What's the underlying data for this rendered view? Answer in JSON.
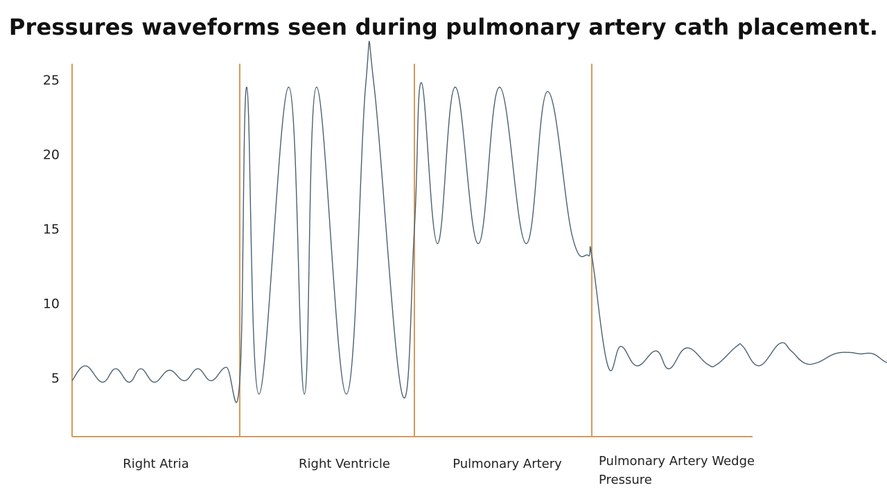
{
  "chart_data": {
    "type": "line",
    "title": "Pressures waveforms seen during pulmonary artery cath placement.",
    "xlabel": "",
    "ylabel": "",
    "ylim": [
      0,
      25
    ],
    "yticks": [
      "5",
      "10",
      "15",
      "20",
      "25"
    ],
    "ytick_values": [
      5,
      10,
      15,
      20,
      25
    ],
    "grid": false,
    "sections": [
      {
        "name": "Right Atria",
        "lines": [
          "Right Atria"
        ]
      },
      {
        "name": "Right Ventricle",
        "lines": [
          "Right Ventricle"
        ]
      },
      {
        "name": "Pulmonary Artery",
        "lines": [
          "Pulmonary Artery"
        ]
      },
      {
        "name": "Pulmonary Artery Wedge Pressure",
        "lines": [
          "Pulmonary Artery Wedge",
          "Pressure"
        ]
      }
    ],
    "series": [
      {
        "x": [
          0.0,
          0.08,
          0.18,
          0.26,
          0.34,
          0.41,
          0.49,
          0.58,
          0.67,
          0.75,
          0.83,
          0.92,
          1.0,
          1.04,
          1.11,
          1.28,
          1.37,
          1.44,
          1.61,
          1.72,
          1.77,
          1.93,
          2.0,
          2.04,
          2.13,
          2.23,
          2.36,
          2.48,
          2.63,
          2.75,
          2.89,
          2.98,
          3.0,
          3.1,
          3.18,
          3.28,
          3.4,
          3.48,
          3.59,
          3.72,
          3.78,
          3.9,
          3.94,
          4.04,
          4.17,
          4.24,
          4.32,
          4.4,
          4.51,
          4.6,
          4.67,
          4.75,
          4.84,
          4.93
        ],
        "y": [
          4.8,
          5.8,
          4.7,
          5.6,
          4.7,
          5.6,
          4.7,
          5.5,
          4.8,
          5.6,
          4.8,
          5.7,
          4.8,
          24.5,
          3.9,
          24.5,
          3.9,
          24.5,
          3.9,
          24.5,
          24.5,
          3.9,
          15.0,
          24.8,
          14.0,
          24.5,
          14.0,
          24.5,
          14.0,
          24.2,
          14.5,
          13.2,
          13.2,
          5.8,
          7.1,
          5.8,
          6.8,
          5.6,
          7.0,
          5.9,
          5.9,
          7.1,
          7.1,
          5.8,
          7.3,
          6.8,
          6.0,
          6.0,
          6.6,
          6.7,
          6.6,
          6.6,
          6.0,
          6.0
        ]
      }
    ],
    "colors": {
      "axis": "#d49a5a",
      "wave": "#4a6070",
      "text": "#222222"
    }
  }
}
